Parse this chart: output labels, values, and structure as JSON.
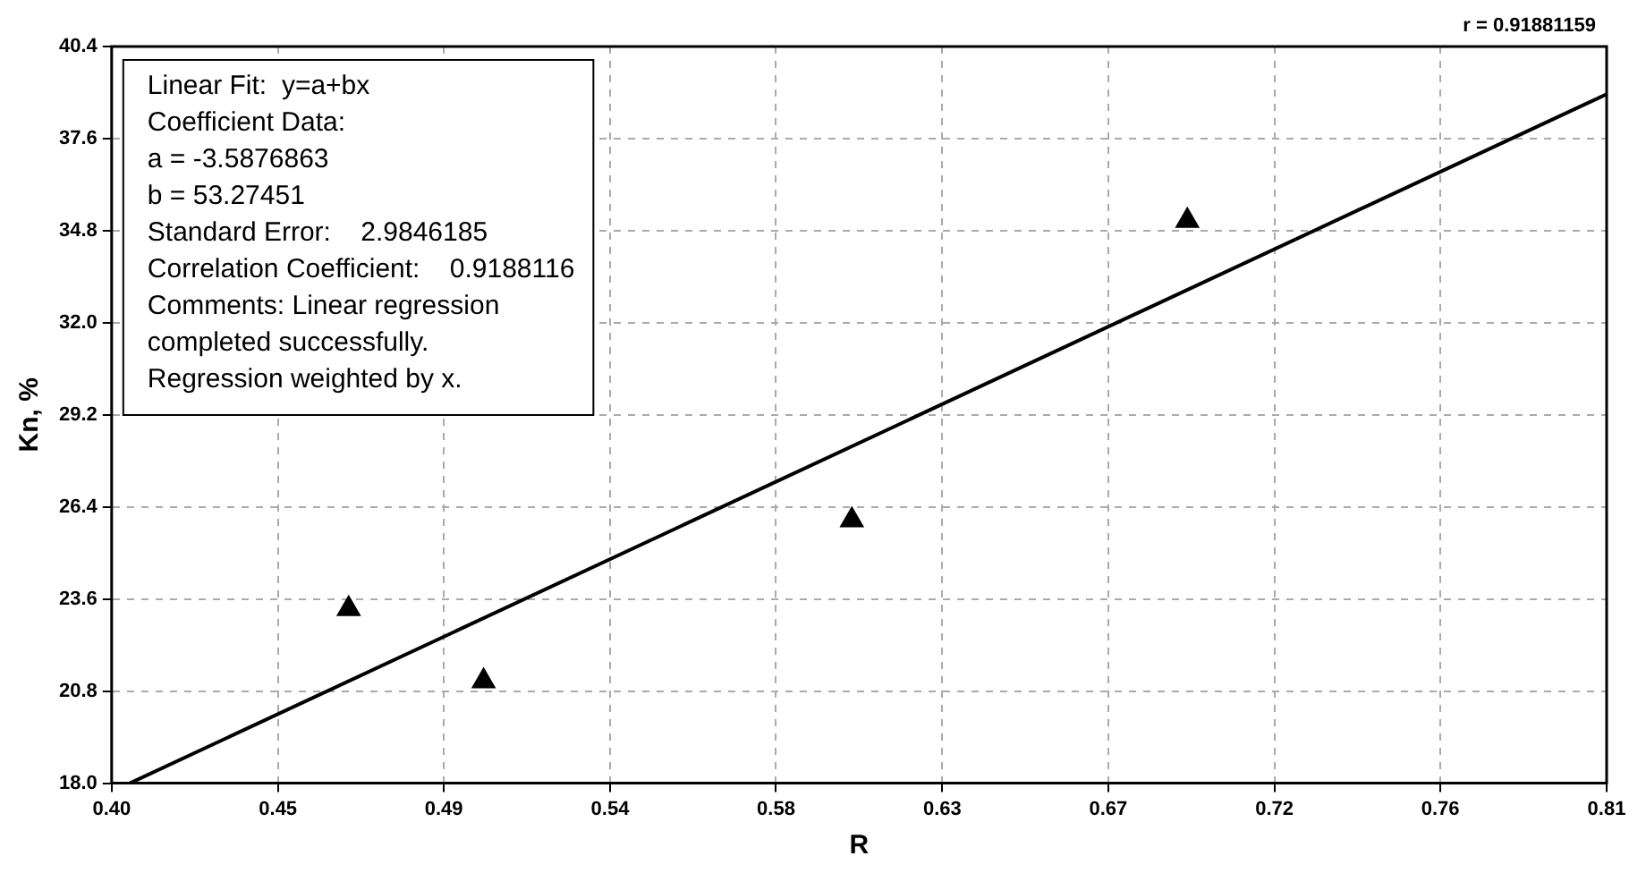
{
  "chart_data": {
    "type": "scatter",
    "xlabel": "R",
    "ylabel": "Kn, %",
    "xlim": [
      0.4,
      0.81
    ],
    "xticks": [
      {
        "value": 0.4,
        "label": "0.40"
      },
      {
        "value": 0.4456,
        "label": "0.45"
      },
      {
        "value": 0.4911,
        "label": "0.49"
      },
      {
        "value": 0.5367,
        "label": "0.54"
      },
      {
        "value": 0.5822,
        "label": "0.58"
      },
      {
        "value": 0.6278,
        "label": "0.63"
      },
      {
        "value": 0.6733,
        "label": "0.67"
      },
      {
        "value": 0.7189,
        "label": "0.72"
      },
      {
        "value": 0.7644,
        "label": "0.76"
      },
      {
        "value": 0.81,
        "label": "0.81"
      }
    ],
    "ylim": [
      18.0,
      40.4
    ],
    "yticks": [
      {
        "value": 18,
        "label": "18.0"
      },
      {
        "value": 20.8,
        "label": "20.8"
      },
      {
        "value": 23.6,
        "label": "23.6"
      },
      {
        "value": 26.4,
        "label": "26.4"
      },
      {
        "value": 29.2,
        "label": "29.2"
      },
      {
        "value": 32,
        "label": "32.0"
      },
      {
        "value": 34.8,
        "label": "34.8"
      },
      {
        "value": 37.6,
        "label": "37.6"
      },
      {
        "value": 40.4,
        "label": "40.4"
      }
    ],
    "grid": true,
    "legend": false,
    "series": [
      {
        "type": "scatter",
        "color": "#000000",
        "marker": "triangle",
        "x": [
          0.465,
          0.502,
          0.603,
          0.695
        ],
        "values": [
          23.3,
          21.1,
          26.0,
          35.1
        ]
      },
      {
        "type": "line",
        "color": "#000000",
        "marker": "none",
        "line_style": "solid",
        "x": [
          0.405,
          0.81
        ],
        "values": [
          18.0,
          38.95
        ]
      }
    ],
    "annotations": [
      "r = 0.91881159",
      "Linear Fit:  y=a+bx",
      "Coefficient Data:",
      "a = -3.5876863",
      "b = 53.27451",
      "Standard Error:    2.9846185",
      "Correlation Coefficient:    0.9188116",
      "Comments: Linear regression",
      "completed successfully.",
      "Regression weighted by x."
    ]
  }
}
